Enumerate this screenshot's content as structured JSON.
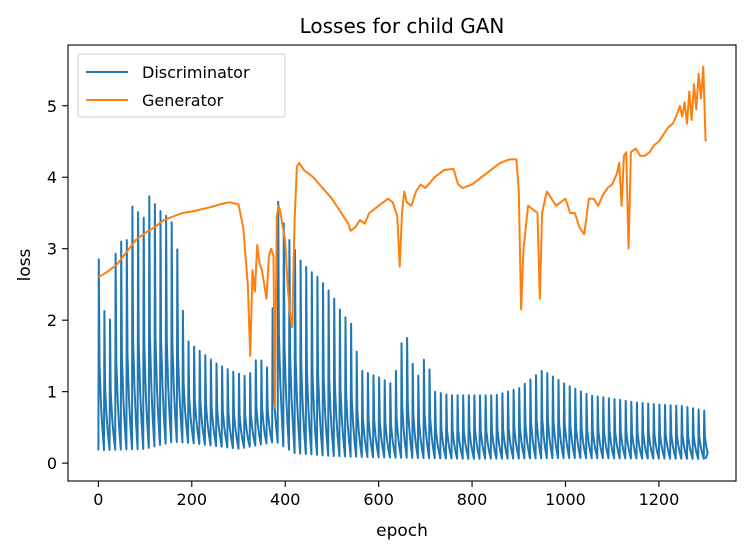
{
  "chart_data": {
    "type": "line",
    "title": "Losses for child GAN",
    "xlabel": "epoch",
    "ylabel": "loss",
    "xlim": [
      -65,
      1365
    ],
    "ylim": [
      -0.25,
      5.85
    ],
    "xticks": [
      0,
      200,
      400,
      600,
      800,
      1000,
      1200
    ],
    "yticks": [
      0,
      1,
      2,
      3,
      4,
      5
    ],
    "grid": false,
    "legend_position": "top-left",
    "series": [
      {
        "name": "Discriminator",
        "color": "#1f77b4",
        "style": "oscillating",
        "period": 12,
        "peaks": [
          [
            0,
            2.85
          ],
          [
            10,
            2.15
          ],
          [
            25,
            2.0
          ],
          [
            38,
            3.1
          ],
          [
            50,
            3.1
          ],
          [
            60,
            3.12
          ],
          [
            70,
            3.6
          ],
          [
            80,
            3.55
          ],
          [
            95,
            3.4
          ],
          [
            105,
            3.75
          ],
          [
            115,
            3.7
          ],
          [
            125,
            3.55
          ],
          [
            140,
            3.5
          ],
          [
            150,
            3.4
          ],
          [
            160,
            3.35
          ],
          [
            170,
            2.9
          ],
          [
            185,
            1.75
          ],
          [
            200,
            1.65
          ],
          [
            220,
            1.55
          ],
          [
            250,
            1.4
          ],
          [
            280,
            1.3
          ],
          [
            300,
            1.25
          ],
          [
            320,
            1.2
          ],
          [
            340,
            1.5
          ],
          [
            365,
            1.3
          ],
          [
            385,
            3.78
          ],
          [
            400,
            3.2
          ],
          [
            415,
            3.05
          ],
          [
            430,
            2.85
          ],
          [
            450,
            2.7
          ],
          [
            470,
            2.6
          ],
          [
            500,
            2.35
          ],
          [
            520,
            2.1
          ],
          [
            540,
            1.95
          ],
          [
            560,
            1.3
          ],
          [
            600,
            1.2
          ],
          [
            630,
            1.1
          ],
          [
            655,
            1.9
          ],
          [
            680,
            1.15
          ],
          [
            700,
            1.52
          ],
          [
            720,
            1.0
          ],
          [
            750,
            0.95
          ],
          [
            800,
            0.95
          ],
          [
            850,
            0.95
          ],
          [
            900,
            1.05
          ],
          [
            950,
            1.3
          ],
          [
            1000,
            1.1
          ],
          [
            1050,
            0.95
          ],
          [
            1100,
            0.9
          ],
          [
            1150,
            0.85
          ],
          [
            1200,
            0.82
          ],
          [
            1250,
            0.8
          ],
          [
            1300,
            0.73
          ]
        ],
        "troughs": [
          [
            0,
            0.18
          ],
          [
            100,
            0.2
          ],
          [
            160,
            0.3
          ],
          [
            200,
            0.28
          ],
          [
            300,
            0.2
          ],
          [
            380,
            0.3
          ],
          [
            420,
            0.14
          ],
          [
            500,
            0.1
          ],
          [
            600,
            0.08
          ],
          [
            700,
            0.07
          ],
          [
            800,
            0.06
          ],
          [
            1000,
            0.07
          ],
          [
            1300,
            0.06
          ]
        ]
      },
      {
        "name": "Generator",
        "color": "#ff7f0e",
        "style": "line",
        "x": [
          0,
          20,
          40,
          60,
          80,
          100,
          120,
          140,
          160,
          180,
          200,
          220,
          240,
          260,
          280,
          300,
          310,
          320,
          325,
          330,
          335,
          340,
          345,
          350,
          355,
          360,
          365,
          370,
          375,
          378,
          382,
          386,
          390,
          395,
          400,
          405,
          410,
          415,
          420,
          425,
          430,
          440,
          460,
          480,
          500,
          520,
          535,
          540,
          550,
          560,
          570,
          580,
          590,
          600,
          620,
          630,
          640,
          645,
          650,
          655,
          660,
          670,
          680,
          690,
          700,
          720,
          740,
          760,
          770,
          780,
          800,
          820,
          840,
          860,
          880,
          895,
          900,
          905,
          910,
          920,
          940,
          945,
          950,
          960,
          980,
          990,
          1000,
          1010,
          1020,
          1030,
          1040,
          1050,
          1060,
          1070,
          1080,
          1090,
          1100,
          1110,
          1115,
          1120,
          1125,
          1130,
          1135,
          1140,
          1150,
          1160,
          1170,
          1180,
          1190,
          1200,
          1210,
          1220,
          1230,
          1240,
          1245,
          1250,
          1255,
          1260,
          1265,
          1270,
          1275,
          1280,
          1285,
          1290,
          1295,
          1300
        ],
        "y": [
          2.6,
          2.68,
          2.78,
          2.95,
          3.12,
          3.22,
          3.3,
          3.4,
          3.45,
          3.5,
          3.52,
          3.55,
          3.58,
          3.62,
          3.65,
          3.62,
          3.3,
          2.5,
          1.5,
          2.7,
          2.4,
          3.05,
          2.8,
          2.7,
          2.5,
          2.3,
          2.9,
          3.0,
          2.9,
          0.78,
          3.45,
          3.6,
          3.5,
          3.3,
          3.1,
          2.5,
          2.1,
          1.9,
          3.4,
          4.15,
          4.2,
          4.1,
          4.0,
          3.85,
          3.7,
          3.5,
          3.35,
          3.25,
          3.3,
          3.4,
          3.35,
          3.5,
          3.55,
          3.6,
          3.7,
          3.65,
          3.45,
          2.75,
          3.5,
          3.8,
          3.65,
          3.6,
          3.8,
          3.9,
          3.85,
          4.0,
          4.1,
          4.12,
          3.9,
          3.85,
          3.9,
          4.0,
          4.1,
          4.2,
          4.25,
          4.25,
          3.8,
          2.15,
          3.0,
          3.6,
          3.5,
          2.3,
          3.5,
          3.8,
          3.6,
          3.65,
          3.7,
          3.5,
          3.5,
          3.3,
          3.2,
          3.7,
          3.7,
          3.6,
          3.75,
          3.85,
          3.9,
          4.05,
          4.2,
          3.6,
          4.3,
          4.35,
          3.0,
          4.35,
          4.4,
          4.3,
          4.3,
          4.35,
          4.45,
          4.5,
          4.6,
          4.7,
          4.75,
          4.9,
          5.0,
          4.85,
          5.05,
          4.75,
          5.2,
          4.8,
          5.3,
          4.95,
          5.45,
          5.1,
          5.55,
          4.5
        ]
      }
    ]
  }
}
